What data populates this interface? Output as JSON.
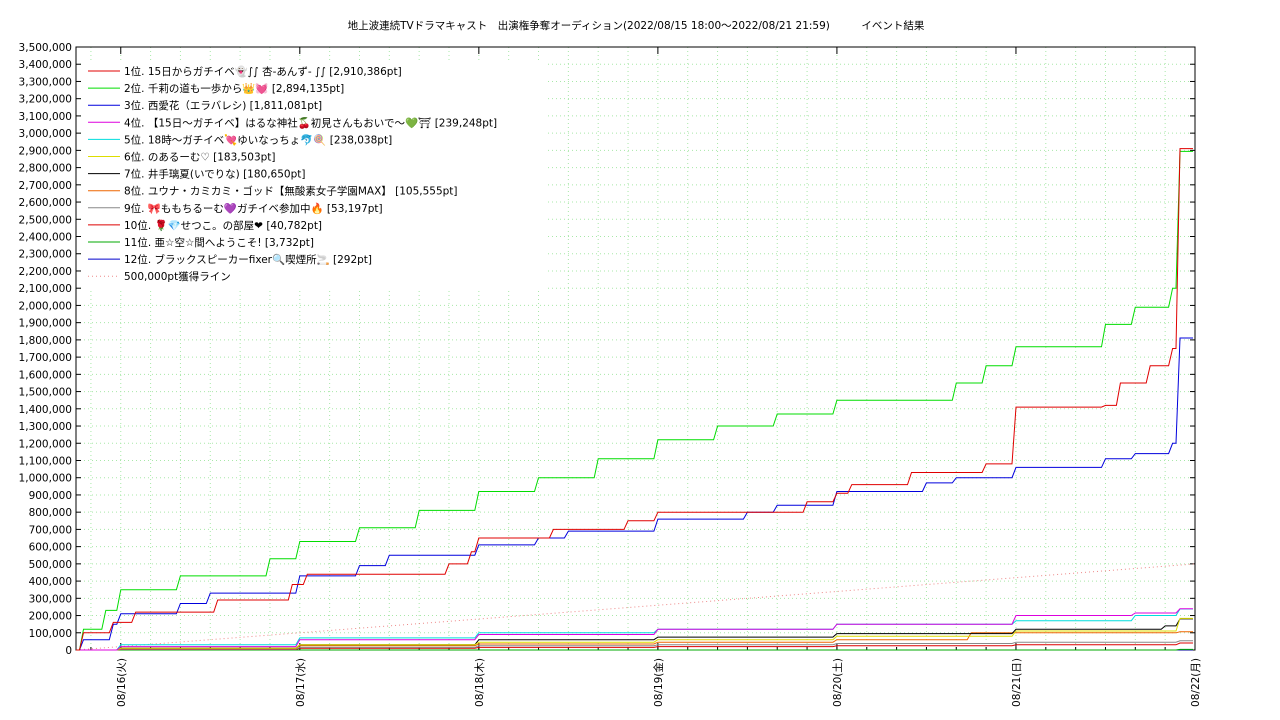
{
  "chart_data": {
    "type": "line",
    "title": "地上波連続TVドラマキャスト　出演権争奪オーディション(2022/08/15 18:00〜2022/08/21 21:59)　　　イベント結果",
    "xlabel": "",
    "ylabel": "",
    "ylim": [
      0,
      3500000
    ],
    "y_tick_labels": [
      "0",
      "100,000",
      "200,000",
      "300,000",
      "400,000",
      "500,000",
      "600,000",
      "700,000",
      "800,000",
      "900,000",
      "1,000,000",
      "1,100,000",
      "1,200,000",
      "1,300,000",
      "1,400,000",
      "1,500,000",
      "1,600,000",
      "1,700,000",
      "1,800,000",
      "1,900,000",
      "2,000,000",
      "2,100,000",
      "2,200,000",
      "2,300,000",
      "2,400,000",
      "2,500,000",
      "2,600,000",
      "2,700,000",
      "2,800,000",
      "2,900,000",
      "3,000,000",
      "3,100,000",
      "3,200,000",
      "3,300,000",
      "3,400,000",
      "3,500,000"
    ],
    "xlim": [
      "2022-08-15 18:00",
      "2022-08-22 00:00"
    ],
    "x_tick_labels": [
      "08/16(火)",
      "08/17(水)",
      "08/18(木)",
      "08/19(金)",
      "08/20(土)",
      "08/21(日)",
      "08/22(月)"
    ],
    "x_tick_dates": [
      "2022-08-16 00:00",
      "2022-08-17 00:00",
      "2022-08-18 00:00",
      "2022-08-19 00:00",
      "2022-08-20 00:00",
      "2022-08-21 00:00",
      "2022-08-22 00:00"
    ],
    "grid": true,
    "legend_position": "top-left",
    "series": [
      {
        "name": "1位. 15日からガチイベ👻∫∫ 杏-あんず- ∫∫ [2,910,386pt]",
        "color": "#e00000",
        "points": [
          [
            "08/15 18:00",
            0
          ],
          [
            "08/15 19:00",
            100000
          ],
          [
            "08/15 23:00",
            160000
          ],
          [
            "08/16 02:00",
            220000
          ],
          [
            "08/16 13:00",
            290000
          ],
          [
            "08/16 23:00",
            380000
          ],
          [
            "08/17 01:00",
            440000
          ],
          [
            "08/17 20:00",
            500000
          ],
          [
            "08/17 23:00",
            570000
          ],
          [
            "08/18 00:00",
            650000
          ],
          [
            "08/18 10:00",
            700000
          ],
          [
            "08/18 20:00",
            750000
          ],
          [
            "08/19 00:00",
            800000
          ],
          [
            "08/19 12:00",
            800000
          ],
          [
            "08/19 20:00",
            860000
          ],
          [
            "08/20 00:00",
            910000
          ],
          [
            "08/20 02:00",
            960000
          ],
          [
            "08/20 10:00",
            1030000
          ],
          [
            "08/20 20:00",
            1080000
          ],
          [
            "08/21 00:00",
            1410000
          ],
          [
            "08/21 12:00",
            1420000
          ],
          [
            "08/21 14:00",
            1550000
          ],
          [
            "08/21 18:00",
            1650000
          ],
          [
            "08/21 21:00",
            1750000
          ],
          [
            "08/21 21:59",
            2910386
          ]
        ]
      },
      {
        "name": "2位. 千莉の道も一歩から👑💓 [2,894,135pt]",
        "color": "#00dd00",
        "points": [
          [
            "08/15 18:00",
            0
          ],
          [
            "08/15 19:00",
            120000
          ],
          [
            "08/15 22:00",
            230000
          ],
          [
            "08/16 00:00",
            350000
          ],
          [
            "08/16 08:00",
            430000
          ],
          [
            "08/16 20:00",
            530000
          ],
          [
            "08/17 00:00",
            630000
          ],
          [
            "08/17 08:00",
            710000
          ],
          [
            "08/17 16:00",
            810000
          ],
          [
            "08/18 00:00",
            920000
          ],
          [
            "08/18 08:00",
            1000000
          ],
          [
            "08/18 16:00",
            1110000
          ],
          [
            "08/19 00:00",
            1220000
          ],
          [
            "08/19 08:00",
            1300000
          ],
          [
            "08/19 16:00",
            1370000
          ],
          [
            "08/20 00:00",
            1450000
          ],
          [
            "08/20 16:00",
            1550000
          ],
          [
            "08/20 20:00",
            1650000
          ],
          [
            "08/21 00:00",
            1760000
          ],
          [
            "08/21 12:00",
            1890000
          ],
          [
            "08/21 16:00",
            1990000
          ],
          [
            "08/21 21:00",
            2100000
          ],
          [
            "08/21 21:59",
            2894135
          ]
        ]
      },
      {
        "name": "3位. 西愛花（エラバレシ) [1,811,081pt]",
        "color": "#0000dd",
        "points": [
          [
            "08/15 18:00",
            0
          ],
          [
            "08/15 19:00",
            60000
          ],
          [
            "08/15 23:00",
            150000
          ],
          [
            "08/16 00:00",
            210000
          ],
          [
            "08/16 08:00",
            270000
          ],
          [
            "08/16 12:00",
            330000
          ],
          [
            "08/17 00:00",
            430000
          ],
          [
            "08/17 08:00",
            490000
          ],
          [
            "08/17 12:00",
            550000
          ],
          [
            "08/18 00:00",
            610000
          ],
          [
            "08/18 08:00",
            650000
          ],
          [
            "08/18 12:00",
            690000
          ],
          [
            "08/19 00:00",
            760000
          ],
          [
            "08/19 12:00",
            800000
          ],
          [
            "08/19 16:00",
            840000
          ],
          [
            "08/20 00:00",
            920000
          ],
          [
            "08/20 12:00",
            970000
          ],
          [
            "08/20 16:00",
            1000000
          ],
          [
            "08/21 00:00",
            1060000
          ],
          [
            "08/21 12:00",
            1110000
          ],
          [
            "08/21 16:00",
            1140000
          ],
          [
            "08/21 21:00",
            1200000
          ],
          [
            "08/21 21:59",
            1811081
          ]
        ]
      },
      {
        "name": "4位. 【15日〜ガチイベ】はるな神社🍒初見さんもおいで〜💚⛩ [239,248pt]",
        "color": "#dd00dd",
        "points": [
          [
            "08/15 18:00",
            0
          ],
          [
            "08/16 00:00",
            20000
          ],
          [
            "08/17 00:00",
            60000
          ],
          [
            "08/18 00:00",
            90000
          ],
          [
            "08/19 00:00",
            120000
          ],
          [
            "08/20 00:00",
            150000
          ],
          [
            "08/21 00:00",
            200000
          ],
          [
            "08/21 16:00",
            215000
          ],
          [
            "08/21 21:59",
            239248
          ]
        ]
      },
      {
        "name": "5位. 18時〜ガチイベ💘ゆいなっちょ🐬🍭 [238,038pt]",
        "color": "#00dddd",
        "points": [
          [
            "08/15 18:00",
            0
          ],
          [
            "08/16 00:00",
            30000
          ],
          [
            "08/17 00:00",
            70000
          ],
          [
            "08/18 00:00",
            100000
          ],
          [
            "08/19 00:00",
            120000
          ],
          [
            "08/20 00:00",
            150000
          ],
          [
            "08/21 00:00",
            170000
          ],
          [
            "08/21 16:00",
            200000
          ],
          [
            "08/21 21:59",
            238038
          ]
        ]
      },
      {
        "name": "6位. のあるーむ♡ [183,503pt]",
        "color": "#dddd00",
        "points": [
          [
            "08/15 18:00",
            0
          ],
          [
            "08/16 00:00",
            10000
          ],
          [
            "08/17 00:00",
            30000
          ],
          [
            "08/18 00:00",
            45000
          ],
          [
            "08/19 00:00",
            60000
          ],
          [
            "08/20 00:00",
            80000
          ],
          [
            "08/21 00:00",
            110000
          ],
          [
            "08/21 21:59",
            183503
          ]
        ]
      },
      {
        "name": "7位. 井手璃夏(いでりな) [180,650pt]",
        "color": "#000000",
        "points": [
          [
            "08/15 18:00",
            0
          ],
          [
            "08/16 00:00",
            10000
          ],
          [
            "08/17 00:00",
            30000
          ],
          [
            "08/18 00:00",
            60000
          ],
          [
            "08/19 00:00",
            75000
          ],
          [
            "08/20 00:00",
            95000
          ],
          [
            "08/21 00:00",
            120000
          ],
          [
            "08/21 20:00",
            140000
          ],
          [
            "08/21 21:59",
            180650
          ]
        ]
      },
      {
        "name": "8位. ユウナ・カミカミ・ゴッド【無酸素女子学園MAX】 [105,555pt]",
        "color": "#ee6600",
        "points": [
          [
            "08/15 18:00",
            0
          ],
          [
            "08/16 00:00",
            10000
          ],
          [
            "08/17 00:00",
            25000
          ],
          [
            "08/18 00:00",
            35000
          ],
          [
            "08/19 00:00",
            45000
          ],
          [
            "08/20 00:00",
            60000
          ],
          [
            "08/20 18:00",
            100000
          ],
          [
            "08/21 21:59",
            105555
          ]
        ]
      },
      {
        "name": "9位. 🎀ももちるーむ💜ガチイベ参加中🔥 [53,197pt]",
        "color": "#888888",
        "points": [
          [
            "08/15 18:00",
            0
          ],
          [
            "08/16 00:00",
            5000
          ],
          [
            "08/17 00:00",
            15000
          ],
          [
            "08/18 00:00",
            25000
          ],
          [
            "08/19 00:00",
            30000
          ],
          [
            "08/20 00:00",
            38000
          ],
          [
            "08/21 00:00",
            45000
          ],
          [
            "08/21 21:59",
            53197
          ]
        ]
      },
      {
        "name": "10位. 🌹💎せつこ。の部屋❤ [40,782pt]",
        "color": "#dd0000",
        "points": [
          [
            "08/15 18:00",
            0
          ],
          [
            "08/16 00:00",
            3000
          ],
          [
            "08/17 00:00",
            10000
          ],
          [
            "08/18 00:00",
            15000
          ],
          [
            "08/19 00:00",
            20000
          ],
          [
            "08/20 00:00",
            25000
          ],
          [
            "08/21 00:00",
            30000
          ],
          [
            "08/21 21:59",
            40782
          ]
        ]
      },
      {
        "name": "11位. 亜☆空☆間へようこそ! [3,732pt]",
        "color": "#00aa00",
        "points": [
          [
            "08/15 18:00",
            0
          ],
          [
            "08/21 21:59",
            3732
          ]
        ]
      },
      {
        "name": "12位. ブラックスピーカーfixer🔍喫煙所🚬 [292pt]",
        "color": "#0000cc",
        "points": [
          [
            "08/15 18:00",
            0
          ],
          [
            "08/21 21:59",
            292
          ]
        ]
      },
      {
        "name": "500,000pt獲得ライン",
        "color": "#ee8888",
        "dotted": true,
        "points": [
          [
            "08/15 18:00",
            0
          ],
          [
            "08/22 00:00",
            500000
          ]
        ]
      }
    ]
  }
}
